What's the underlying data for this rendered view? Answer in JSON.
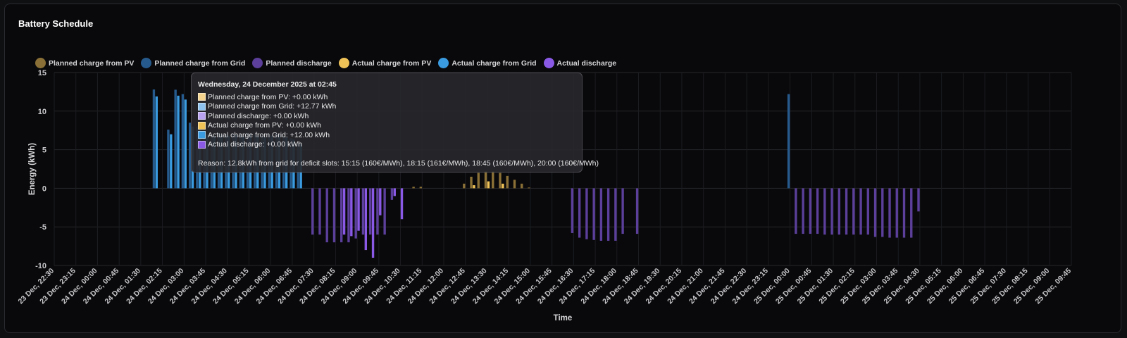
{
  "card": {
    "title": "Battery Schedule"
  },
  "legend": [
    {
      "label": "Planned charge from PV",
      "color": "#8a7036"
    },
    {
      "label": "Planned charge from Grid",
      "color": "#265a8c"
    },
    {
      "label": "Planned discharge",
      "color": "#5b3f9a"
    },
    {
      "label": "Actual charge from PV",
      "color": "#efc258"
    },
    {
      "label": "Actual charge from Grid",
      "color": "#3a9be0"
    },
    {
      "label": "Actual discharge",
      "color": "#8a5ae6"
    }
  ],
  "tooltip": {
    "title": "Wednesday, 24 December 2025 at 02:45",
    "rows": [
      {
        "text": "Planned charge from PV: +0.00 kWh",
        "color": "#f5d58e"
      },
      {
        "text": "Planned charge from Grid: +12.77 kWh",
        "color": "#8ec3ef"
      },
      {
        "text": "Planned discharge: +0.00 kWh",
        "color": "#b9a2ef"
      },
      {
        "text": "Actual charge from PV: +0.00 kWh",
        "color": "#efc258"
      },
      {
        "text": "Actual charge from Grid: +12.00 kWh",
        "color": "#3a9be0"
      },
      {
        "text": "Actual discharge: +0.00 kWh",
        "color": "#8a5ae6"
      }
    ],
    "reason": "Reason: 12.8kWh from grid for deficit slots: 15:15 (160€/MWh), 18:15 (161€/MWh), 18:45 (160€/MWh), 20:00 (160€/MWh)"
  },
  "chart_data": {
    "type": "bar",
    "xlabel": "Time",
    "ylabel": "Energy (kWh)",
    "ylim": [
      -10,
      15
    ],
    "y_ticks": [
      -10,
      -5,
      0,
      5,
      10,
      15
    ],
    "x_range": [
      "2025-12-23T22:30",
      "2025-12-25T09:45"
    ],
    "x_ticks": [
      "23 Dec, 22:30",
      "23 Dec, 23:15",
      "24 Dec, 00:00",
      "24 Dec, 00:45",
      "24 Dec, 01:30",
      "24 Dec, 02:15",
      "24 Dec, 03:00",
      "24 Dec, 03:45",
      "24 Dec, 04:30",
      "24 Dec, 05:15",
      "24 Dec, 06:00",
      "24 Dec, 06:45",
      "24 Dec, 07:30",
      "24 Dec, 08:15",
      "24 Dec, 09:00",
      "24 Dec, 09:45",
      "24 Dec, 10:30",
      "24 Dec, 11:15",
      "24 Dec, 12:00",
      "24 Dec, 12:45",
      "24 Dec, 13:30",
      "24 Dec, 14:15",
      "24 Dec, 15:00",
      "24 Dec, 15:45",
      "24 Dec, 16:30",
      "24 Dec, 17:15",
      "24 Dec, 18:00",
      "24 Dec, 18:45",
      "24 Dec, 19:30",
      "24 Dec, 20:15",
      "24 Dec, 21:00",
      "24 Dec, 21:45",
      "24 Dec, 22:30",
      "24 Dec, 23:15",
      "25 Dec, 00:00",
      "25 Dec, 00:45",
      "25 Dec, 01:30",
      "25 Dec, 02:15",
      "25 Dec, 03:00",
      "25 Dec, 03:45",
      "25 Dec, 04:30",
      "25 Dec, 05:15",
      "25 Dec, 06:00",
      "25 Dec, 06:45",
      "25 Dec, 07:30",
      "25 Dec, 08:15",
      "25 Dec, 09:00",
      "25 Dec, 09:45"
    ],
    "grid": true,
    "legend_position": "top-left",
    "series": [
      {
        "name": "Planned charge from Grid",
        "color": "#265a8c",
        "points": [
          [
            "2025-12-24T02:00",
            12.8
          ],
          [
            "2025-12-24T02:30",
            7.6
          ],
          [
            "2025-12-24T02:45",
            12.77
          ],
          [
            "2025-12-24T03:00",
            12.2
          ],
          [
            "2025-12-24T03:15",
            8.5
          ],
          [
            "2025-12-24T03:30",
            8.0
          ],
          [
            "2025-12-24T03:45",
            7.5
          ],
          [
            "2025-12-24T04:00",
            7.0
          ],
          [
            "2025-12-24T04:15",
            7.2
          ],
          [
            "2025-12-24T04:30",
            7.0
          ],
          [
            "2025-12-24T04:45",
            7.1
          ],
          [
            "2025-12-24T05:00",
            7.0
          ],
          [
            "2025-12-24T05:15",
            7.2
          ],
          [
            "2025-12-24T05:30",
            7.0
          ],
          [
            "2025-12-24T05:45",
            6.9
          ],
          [
            "2025-12-24T06:00",
            7.0
          ],
          [
            "2025-12-24T06:15",
            7.1
          ],
          [
            "2025-12-24T06:30",
            6.8
          ],
          [
            "2025-12-24T06:45",
            6.5
          ],
          [
            "2025-12-24T07:00",
            6.0
          ],
          [
            "2025-12-25T00:00",
            12.2
          ]
        ]
      },
      {
        "name": "Actual charge from Grid",
        "color": "#3a9be0",
        "points": [
          [
            "2025-12-24T02:00",
            11.9
          ],
          [
            "2025-12-24T02:30",
            7.0
          ],
          [
            "2025-12-24T02:45",
            12.0
          ],
          [
            "2025-12-24T03:00",
            11.5
          ],
          [
            "2025-12-24T03:15",
            8.0
          ],
          [
            "2025-12-24T03:30",
            7.6
          ],
          [
            "2025-12-24T03:45",
            7.0
          ],
          [
            "2025-12-24T04:00",
            6.8
          ],
          [
            "2025-12-24T04:15",
            7.0
          ],
          [
            "2025-12-24T04:30",
            6.8
          ],
          [
            "2025-12-24T04:45",
            6.9
          ],
          [
            "2025-12-24T05:00",
            6.8
          ],
          [
            "2025-12-24T05:15",
            7.0
          ],
          [
            "2025-12-24T05:30",
            6.8
          ],
          [
            "2025-12-24T05:45",
            6.7
          ],
          [
            "2025-12-24T06:00",
            6.8
          ],
          [
            "2025-12-24T06:15",
            6.9
          ],
          [
            "2025-12-24T06:30",
            6.6
          ],
          [
            "2025-12-24T06:45",
            6.3
          ],
          [
            "2025-12-24T07:00",
            5.8
          ]
        ]
      },
      {
        "name": "Planned charge from PV",
        "color": "#8a7036",
        "points": [
          [
            "2025-12-24T11:00",
            0.2
          ],
          [
            "2025-12-24T11:15",
            0.2
          ],
          [
            "2025-12-24T12:45",
            0.6
          ],
          [
            "2025-12-24T13:00",
            1.5
          ],
          [
            "2025-12-24T13:15",
            2.0
          ],
          [
            "2025-12-24T13:30",
            2.2
          ],
          [
            "2025-12-24T13:45",
            2.2
          ],
          [
            "2025-12-24T14:00",
            2.0
          ],
          [
            "2025-12-24T14:15",
            1.6
          ],
          [
            "2025-12-24T14:30",
            1.1
          ],
          [
            "2025-12-24T14:45",
            0.6
          ],
          [
            "2025-12-24T15:00",
            0.1
          ]
        ]
      },
      {
        "name": "Actual charge from PV",
        "color": "#efc258",
        "points": [
          [
            "2025-12-24T13:00",
            0.4
          ],
          [
            "2025-12-24T13:30",
            0.9
          ],
          [
            "2025-12-24T14:00",
            0.6
          ]
        ]
      },
      {
        "name": "Planned discharge",
        "color": "#5b3f9a",
        "points": [
          [
            "2025-12-24T07:30",
            -6.0
          ],
          [
            "2025-12-24T07:45",
            -6.0
          ],
          [
            "2025-12-24T08:00",
            -7.0
          ],
          [
            "2025-12-24T08:15",
            -7.0
          ],
          [
            "2025-12-24T08:30",
            -7.0
          ],
          [
            "2025-12-24T08:45",
            -7.0
          ],
          [
            "2025-12-24T09:00",
            -6.5
          ],
          [
            "2025-12-24T09:15",
            -6.0
          ],
          [
            "2025-12-24T09:30",
            -6.0
          ],
          [
            "2025-12-24T09:45",
            -6.0
          ],
          [
            "2025-12-24T10:00",
            -6.0
          ],
          [
            "2025-12-24T10:15",
            -1.5
          ],
          [
            "2025-12-24T16:30",
            -5.8
          ],
          [
            "2025-12-24T16:45",
            -6.4
          ],
          [
            "2025-12-24T17:00",
            -6.6
          ],
          [
            "2025-12-24T17:15",
            -6.7
          ],
          [
            "2025-12-24T17:30",
            -6.8
          ],
          [
            "2025-12-24T17:45",
            -6.8
          ],
          [
            "2025-12-24T18:00",
            -6.8
          ],
          [
            "2025-12-24T18:15",
            -5.9
          ],
          [
            "2025-12-24T18:45",
            -5.9
          ],
          [
            "2025-12-25T00:15",
            -5.9
          ],
          [
            "2025-12-25T00:30",
            -5.9
          ],
          [
            "2025-12-25T00:45",
            -5.9
          ],
          [
            "2025-12-25T01:00",
            -5.9
          ],
          [
            "2025-12-25T01:15",
            -6.0
          ],
          [
            "2025-12-25T01:30",
            -6.0
          ],
          [
            "2025-12-25T01:45",
            -6.0
          ],
          [
            "2025-12-25T02:00",
            -6.0
          ],
          [
            "2025-12-25T02:15",
            -6.0
          ],
          [
            "2025-12-25T02:30",
            -6.0
          ],
          [
            "2025-12-25T02:45",
            -6.0
          ],
          [
            "2025-12-25T03:00",
            -6.3
          ],
          [
            "2025-12-25T03:15",
            -6.3
          ],
          [
            "2025-12-25T03:30",
            -6.4
          ],
          [
            "2025-12-25T03:45",
            -6.4
          ],
          [
            "2025-12-25T04:00",
            -6.4
          ],
          [
            "2025-12-25T04:15",
            -6.4
          ],
          [
            "2025-12-25T04:30",
            -3.0
          ]
        ]
      },
      {
        "name": "Actual discharge",
        "color": "#8a5ae6",
        "points": [
          [
            "2025-12-24T08:30",
            -6.0
          ],
          [
            "2025-12-24T08:45",
            -6.2
          ],
          [
            "2025-12-24T09:00",
            -5.5
          ],
          [
            "2025-12-24T09:15",
            -8.0
          ],
          [
            "2025-12-24T09:30",
            -9.0
          ],
          [
            "2025-12-24T09:45",
            -3.5
          ],
          [
            "2025-12-24T10:15",
            -1.0
          ],
          [
            "2025-12-24T10:30",
            -4.0
          ]
        ]
      }
    ]
  }
}
